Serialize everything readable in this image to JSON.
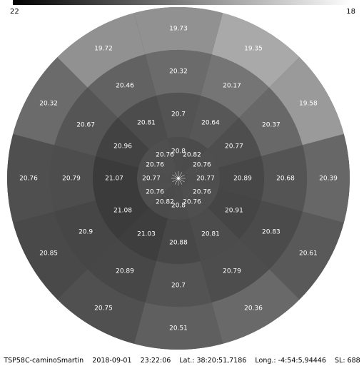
{
  "scale": {
    "max_label": "22",
    "min_label": "18",
    "max_value": 22,
    "min_value": 18,
    "gradient_start": "#000000",
    "gradient_end": "#ffffff"
  },
  "chart_data": {
    "type": "heatmap",
    "title": "",
    "rings": [
      {
        "name": "ring-1",
        "values": [
          20.8,
          20.82,
          20.76,
          20.77,
          20.76,
          20.76,
          20.8,
          20.82,
          20.76,
          20.77,
          20.76,
          20.76
        ]
      },
      {
        "name": "ring-2",
        "values": [
          20.7,
          20.64,
          20.77,
          20.89,
          20.91,
          20.81,
          20.88,
          21.03,
          21.08,
          21.07,
          20.96,
          20.81
        ]
      },
      {
        "name": "ring-3",
        "values": [
          20.32,
          20.17,
          20.37,
          20.68,
          20.83,
          20.79,
          20.7,
          20.89,
          20.9,
          20.79,
          20.67,
          20.46
        ]
      },
      {
        "name": "ring-4",
        "values": [
          19.73,
          19.35,
          19.58,
          20.39,
          20.61,
          20.36,
          20.51,
          20.75,
          20.85,
          20.76,
          20.32,
          19.72
        ]
      }
    ]
  },
  "footer": {
    "device": "TSP58C-caminoSmartin",
    "date": "2018-09-01",
    "time": "23:22:06",
    "lat": "Lat.: 38:20:51,7186",
    "long": "Long.: -4:54:5,94446",
    "sl": "SL: 688"
  }
}
